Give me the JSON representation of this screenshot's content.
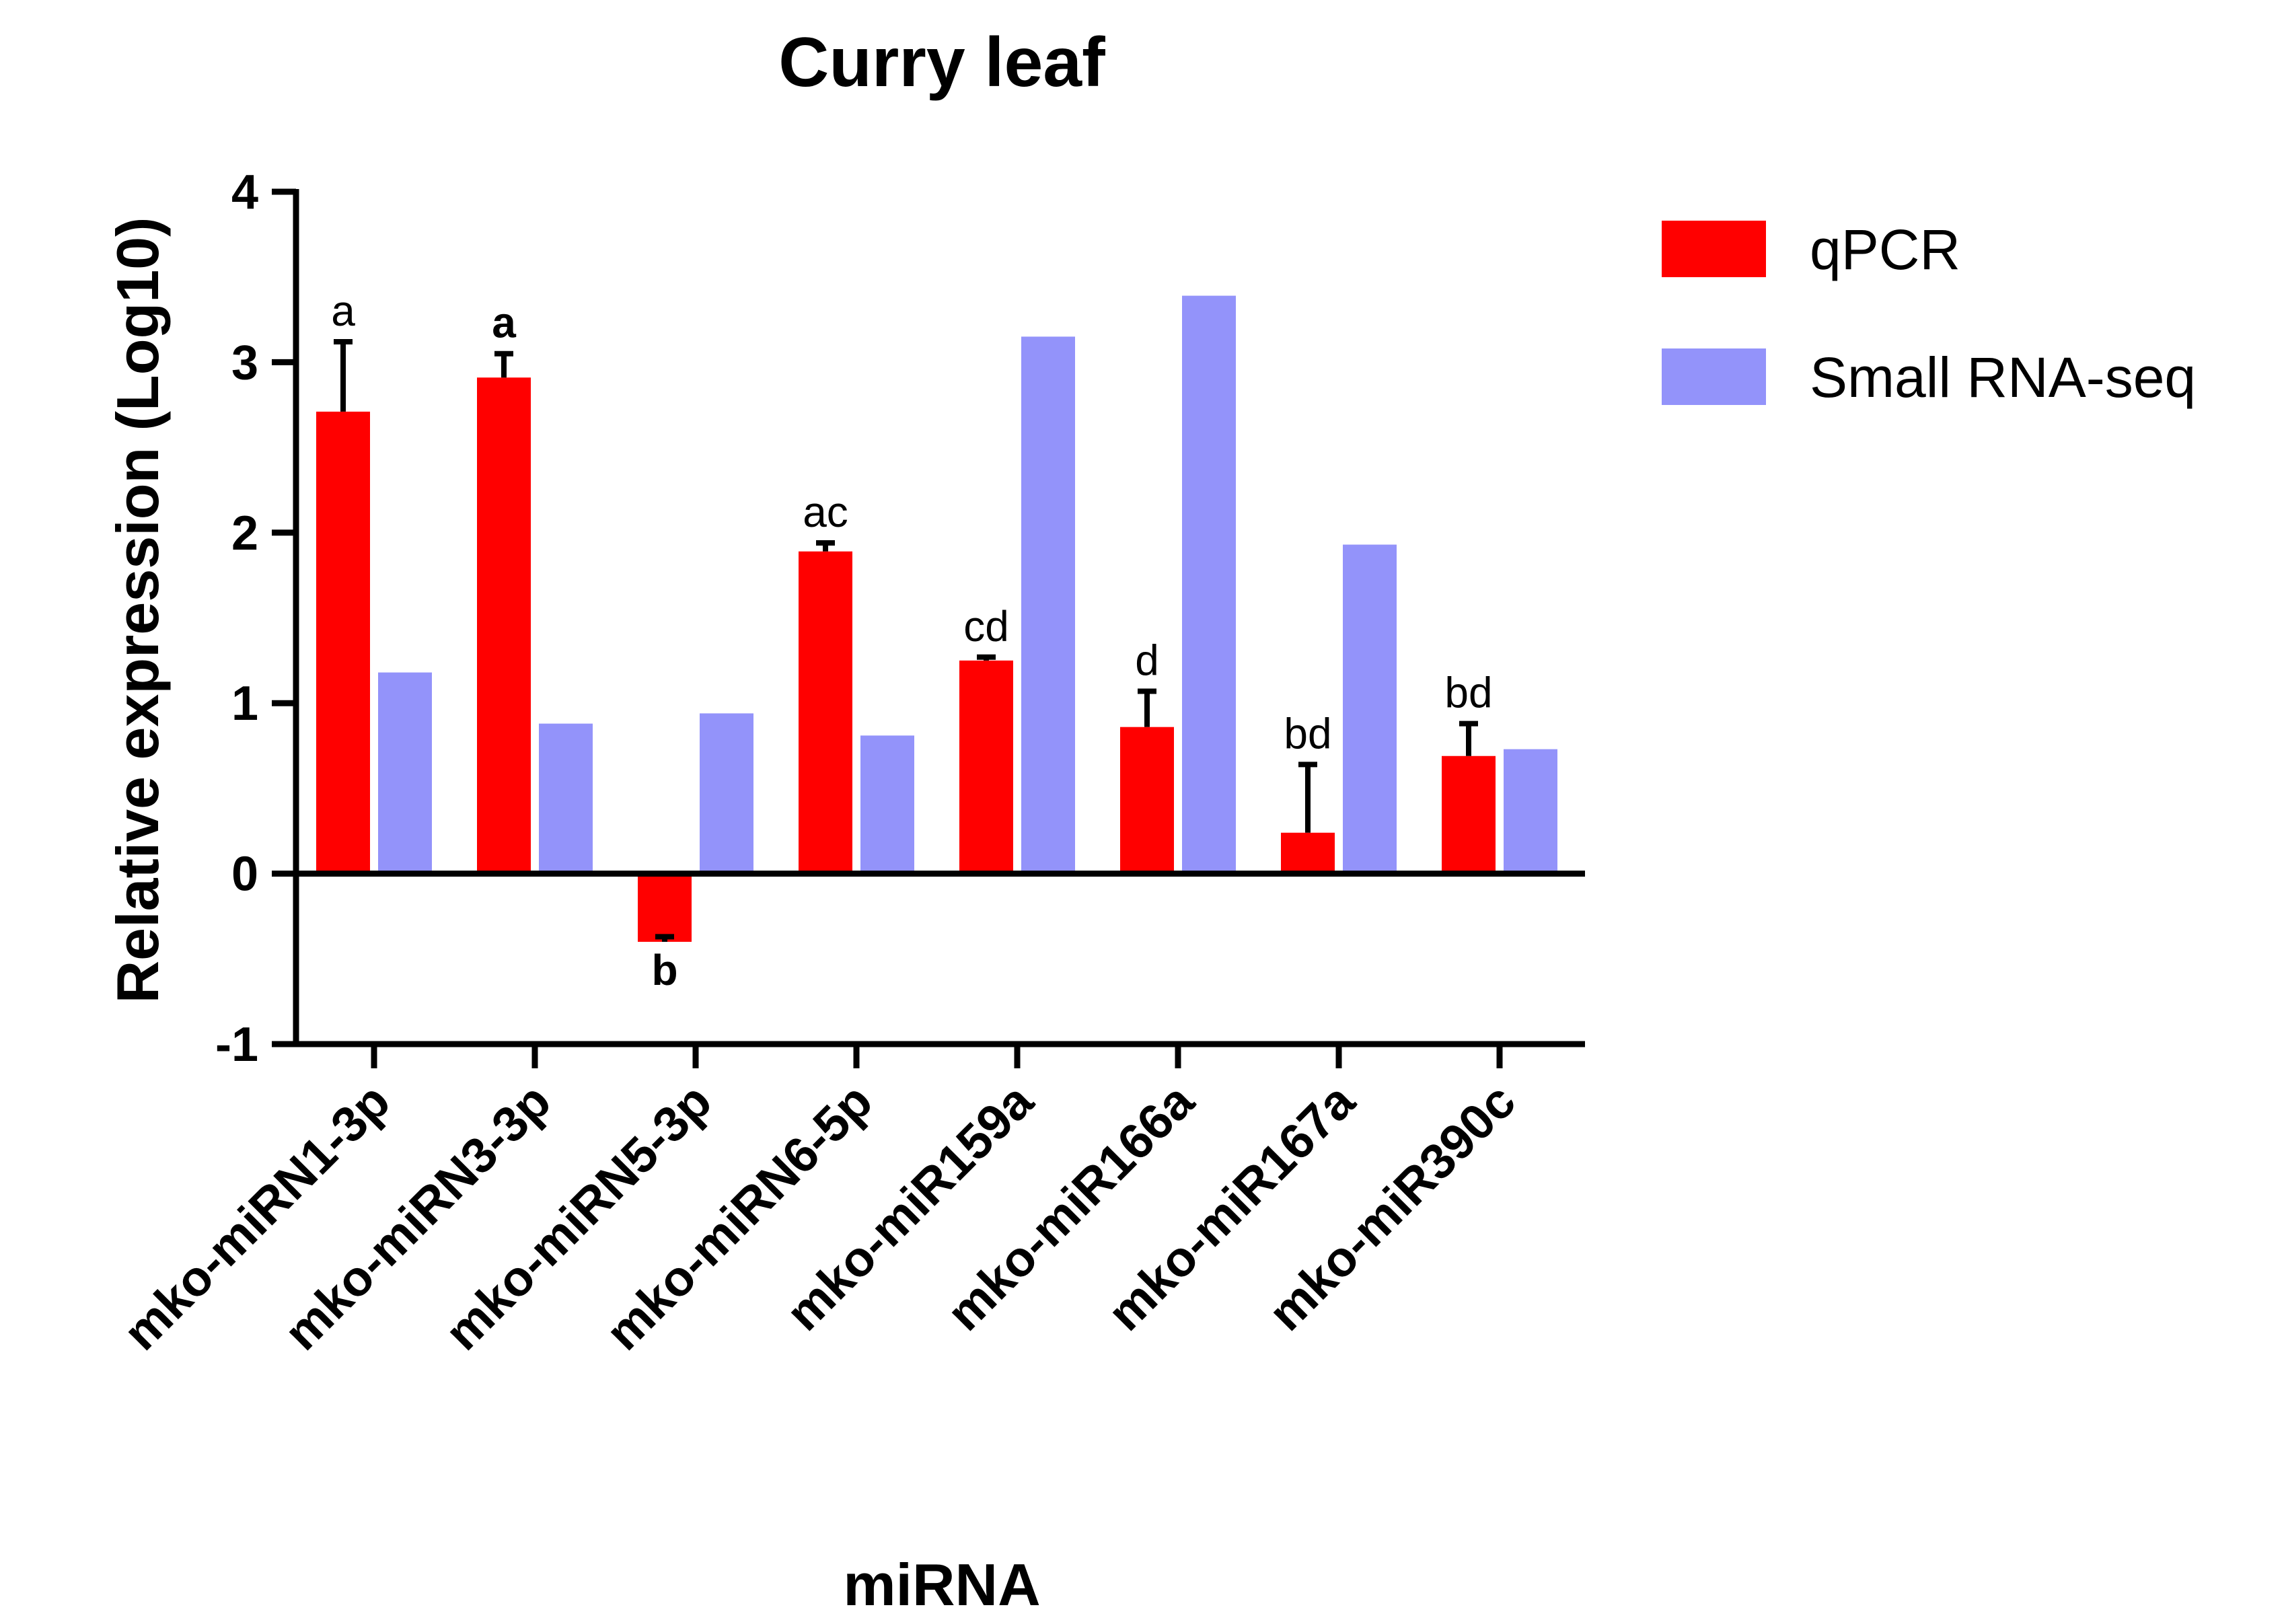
{
  "chart_data": {
    "type": "bar",
    "title": "Curry leaf",
    "xlabel": "miRNA",
    "ylabel": "Relative expression (Log10)",
    "ylim": [
      -1,
      4
    ],
    "yticks": [
      -1,
      0,
      1,
      2,
      3,
      4
    ],
    "ytick_labels": [
      "-1",
      "0",
      "1",
      "2",
      "3",
      "4"
    ],
    "grid": false,
    "legend_position": "top-right",
    "categories": [
      "mko-miRN1-3p",
      "mko-miRN3-3p",
      "mko-miRN5-3p",
      "mko-miRN6-5p",
      "mko-miR159a",
      "mko-miR166a",
      "mko-miR167a",
      "mko-miR390c"
    ],
    "series": [
      {
        "name": "qPCR",
        "color": "#ff0000",
        "values": [
          2.71,
          2.91,
          -0.4,
          1.89,
          1.25,
          0.86,
          0.24,
          0.69
        ],
        "error": [
          0.41,
          0.14,
          0.03,
          0.05,
          0.02,
          0.21,
          0.4,
          0.19
        ]
      },
      {
        "name": "Small RNA-seq",
        "color": "#9393fa",
        "values": [
          1.18,
          0.88,
          0.94,
          0.81,
          3.15,
          3.39,
          1.93,
          0.73
        ]
      }
    ],
    "annotations": [
      "a",
      "a",
      "b",
      "ac",
      "cd",
      "d",
      "bd",
      "bd"
    ]
  }
}
